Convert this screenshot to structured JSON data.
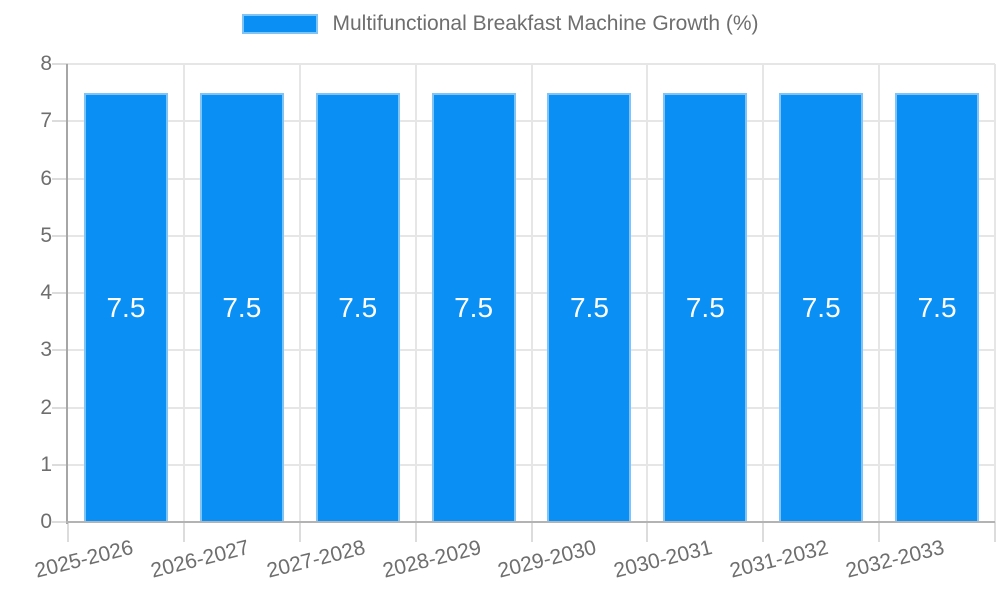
{
  "legend": {
    "position": "top-center",
    "items": [
      {
        "label": "Multifunctional Breakfast Machine Growth (%)",
        "swatch_color": "#0a90f5"
      }
    ]
  },
  "chart_data": {
    "type": "bar",
    "title": "Multifunctional Breakfast Machine Growth (%)",
    "categories": [
      "2025-2026",
      "2026-2027",
      "2027-2028",
      "2028-2029",
      "2029-2030",
      "2030-2031",
      "2031-2032",
      "2032-2033"
    ],
    "series": [
      {
        "name": "Multifunctional Breakfast Machine Growth (%)",
        "values": [
          7.5,
          7.5,
          7.5,
          7.5,
          7.5,
          7.5,
          7.5,
          7.5
        ]
      }
    ],
    "bar_value_labels": [
      "7.5",
      "7.5",
      "7.5",
      "7.5",
      "7.5",
      "7.5",
      "7.5",
      "7.5"
    ],
    "xlabel": "",
    "ylabel": "",
    "ylim": [
      0,
      8
    ],
    "yticks": [
      0,
      1,
      2,
      3,
      4,
      5,
      6,
      7,
      8
    ],
    "grid": true,
    "legend_position": "top",
    "x_label_rotation_deg": -14,
    "colors": {
      "bar": "#0a90f5",
      "bar_border": "#7fc4f8",
      "bar_label": "#ffffff",
      "grid": "#e6e6e6",
      "tick": "#dcdcdc",
      "axis_y_line": "#a6a6a6",
      "axis_x_line": "#b3b3b3",
      "text": "#6e6e6e",
      "background": "#ffffff"
    }
  }
}
